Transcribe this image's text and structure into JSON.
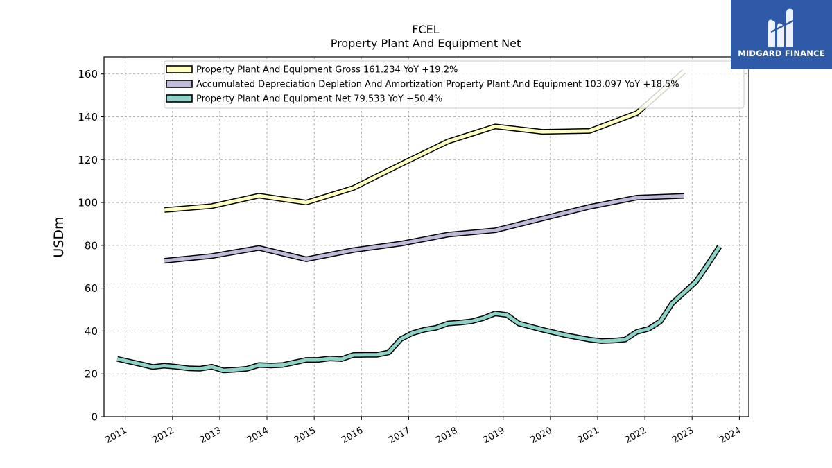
{
  "logo": {
    "text": "MIDGARD FINANCE",
    "icon": "midgard-logo-icon",
    "color": "#2f5aa8"
  },
  "chart_data": {
    "type": "line",
    "title": "FCEL",
    "subtitle": "Property Plant And Equipment Net",
    "xlabel": "",
    "ylabel": "USDm",
    "xlim": [
      2010.55,
      2024.2
    ],
    "ylim": [
      0,
      168
    ],
    "yticks": [
      0,
      20,
      40,
      60,
      80,
      100,
      120,
      140,
      160
    ],
    "xticks": [
      "2011",
      "2012",
      "2013",
      "2014",
      "2015",
      "2016",
      "2017",
      "2018",
      "2019",
      "2020",
      "2021",
      "2022",
      "2023",
      "2024"
    ],
    "grid": true,
    "legend_position": "top",
    "series": [
      {
        "name": "Property Plant And Equipment Gross  161.234 YoY +19.2%",
        "color": "#ffffbf",
        "points": [
          [
            2011.83,
            96.5
          ],
          [
            2012.83,
            98.3
          ],
          [
            2013.83,
            103.2
          ],
          [
            2014.83,
            100.0
          ],
          [
            2015.83,
            106.8
          ],
          [
            2016.83,
            117.8
          ],
          [
            2017.83,
            128.5
          ],
          [
            2018.83,
            135.5
          ],
          [
            2019.83,
            133.0
          ],
          [
            2020.83,
            133.4
          ],
          [
            2021.83,
            141.7
          ],
          [
            2022.83,
            161.2
          ]
        ]
      },
      {
        "name": "Accumulated Depreciation Depletion And Amortization Property Plant And Equipment  103.097 YoY +18.5%",
        "color": "#bebada",
        "points": [
          [
            2011.83,
            72.8
          ],
          [
            2012.83,
            75.0
          ],
          [
            2013.83,
            78.8
          ],
          [
            2014.83,
            73.5
          ],
          [
            2015.83,
            77.8
          ],
          [
            2016.83,
            80.8
          ],
          [
            2017.83,
            85.0
          ],
          [
            2018.83,
            87.0
          ],
          [
            2019.83,
            92.5
          ],
          [
            2020.83,
            98.0
          ],
          [
            2021.83,
            102.3
          ],
          [
            2022.83,
            103.1
          ]
        ]
      },
      {
        "name": "Property Plant And Equipment Net  79.533 YoY +50.4%",
        "color": "#8dd3c7",
        "points": [
          [
            2010.83,
            27.0
          ],
          [
            2011.33,
            24.5
          ],
          [
            2011.58,
            23.2
          ],
          [
            2011.83,
            23.8
          ],
          [
            2012.08,
            23.3
          ],
          [
            2012.33,
            22.6
          ],
          [
            2012.58,
            22.4
          ],
          [
            2012.83,
            23.3
          ],
          [
            2013.08,
            21.6
          ],
          [
            2013.33,
            21.9
          ],
          [
            2013.58,
            22.4
          ],
          [
            2013.83,
            24.1
          ],
          [
            2014.08,
            23.9
          ],
          [
            2014.33,
            24.1
          ],
          [
            2014.58,
            25.3
          ],
          [
            2014.83,
            26.5
          ],
          [
            2015.08,
            26.5
          ],
          [
            2015.33,
            27.2
          ],
          [
            2015.58,
            26.9
          ],
          [
            2015.83,
            28.8
          ],
          [
            2016.08,
            28.9
          ],
          [
            2016.33,
            28.9
          ],
          [
            2016.58,
            30.0
          ],
          [
            2016.83,
            36.2
          ],
          [
            2017.08,
            39.0
          ],
          [
            2017.33,
            40.6
          ],
          [
            2017.58,
            41.5
          ],
          [
            2017.83,
            43.5
          ],
          [
            2018.08,
            43.9
          ],
          [
            2018.33,
            44.5
          ],
          [
            2018.58,
            46.0
          ],
          [
            2018.83,
            48.2
          ],
          [
            2019.08,
            47.5
          ],
          [
            2019.33,
            43.5
          ],
          [
            2019.83,
            40.6
          ],
          [
            2020.33,
            38.0
          ],
          [
            2020.83,
            36.0
          ],
          [
            2021.08,
            35.3
          ],
          [
            2021.33,
            35.5
          ],
          [
            2021.58,
            36.0
          ],
          [
            2021.83,
            39.6
          ],
          [
            2022.08,
            41.0
          ],
          [
            2022.33,
            44.5
          ],
          [
            2022.58,
            53.0
          ],
          [
            2022.83,
            58.0
          ],
          [
            2023.08,
            63.0
          ],
          [
            2023.33,
            71.0
          ],
          [
            2023.58,
            79.5
          ]
        ]
      }
    ]
  }
}
